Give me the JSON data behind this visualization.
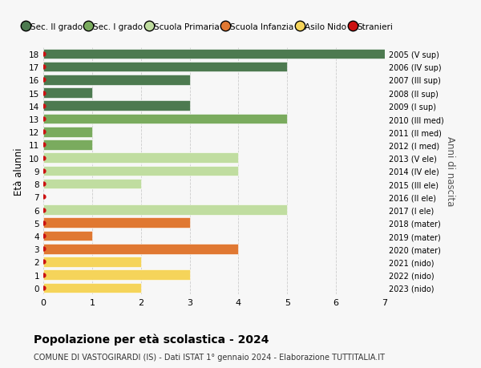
{
  "ages": [
    18,
    17,
    16,
    15,
    14,
    13,
    12,
    11,
    10,
    9,
    8,
    7,
    6,
    5,
    4,
    3,
    2,
    1,
    0
  ],
  "right_labels": [
    "2005 (V sup)",
    "2006 (IV sup)",
    "2007 (III sup)",
    "2008 (II sup)",
    "2009 (I sup)",
    "2010 (III med)",
    "2011 (II med)",
    "2012 (I med)",
    "2013 (V ele)",
    "2014 (IV ele)",
    "2015 (III ele)",
    "2016 (II ele)",
    "2017 (I ele)",
    "2018 (mater)",
    "2019 (mater)",
    "2020 (mater)",
    "2021 (nido)",
    "2022 (nido)",
    "2023 (nido)"
  ],
  "values": [
    7,
    5,
    3,
    1,
    3,
    5,
    1,
    1,
    4,
    4,
    2,
    0,
    5,
    3,
    1,
    4,
    2,
    3,
    2
  ],
  "bar_colors": [
    "#4d7a50",
    "#4d7a50",
    "#4d7a50",
    "#4d7a50",
    "#4d7a50",
    "#7aab5e",
    "#7aab5e",
    "#7aab5e",
    "#c0dda0",
    "#c0dda0",
    "#c0dda0",
    "#c0dda0",
    "#c0dda0",
    "#e07832",
    "#e07832",
    "#e07832",
    "#f5d45a",
    "#f5d45a",
    "#f5d45a"
  ],
  "stranieri_dots": [
    18,
    17,
    16,
    15,
    14,
    13,
    12,
    11,
    10,
    9,
    8,
    7,
    6,
    5,
    4,
    3,
    2,
    1,
    0
  ],
  "legend_labels": [
    "Sec. II grado",
    "Sec. I grado",
    "Scuola Primaria",
    "Scuola Infanzia",
    "Asilo Nido",
    "Stranieri"
  ],
  "legend_colors": [
    "#4d7a50",
    "#7aab5e",
    "#c0dda0",
    "#e07832",
    "#f5d45a",
    "#cc1111"
  ],
  "title_bold": "Popolazione per età scolastica - 2024",
  "subtitle": "COMUNE DI VASTOGIRARDI (IS) - Dati ISTAT 1° gennaio 2024 - Elaborazione TUTTITALIA.IT",
  "ylabel_left": "Età alunni",
  "ylabel_right": "Anni di nascita",
  "xlim": [
    0,
    7
  ],
  "background_color": "#f7f7f7",
  "grid_color": "#cccccc"
}
